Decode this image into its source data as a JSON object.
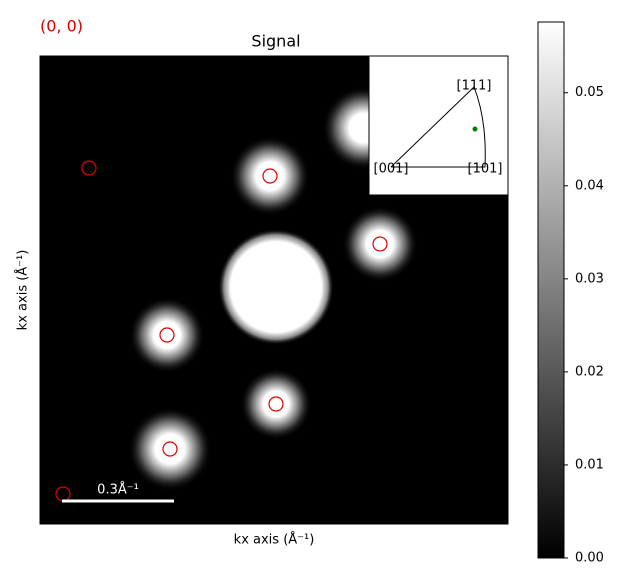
{
  "chart_data": {
    "type": "image",
    "title": "Signal",
    "annotation": "(0, 0)",
    "xlabel": "kx axis (Å⁻¹)",
    "ylabel": "kx axis (Å⁻¹)",
    "scalebar_label": "0.3Å⁻¹",
    "colormap": "gray",
    "clim": [
      0,
      0.0576
    ],
    "cticks": [
      {
        "value": 0,
        "label": "0.00"
      },
      0.01,
      0.02,
      0.03,
      0.04,
      0.05
    ],
    "inset_labels": [
      "[111]",
      "[001]",
      "[101]"
    ]
  }
}
